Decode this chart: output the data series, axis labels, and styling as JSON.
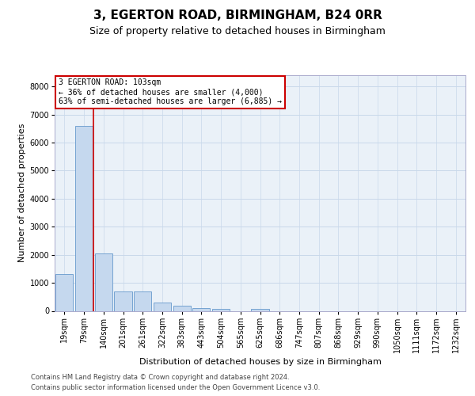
{
  "title": "3, EGERTON ROAD, BIRMINGHAM, B24 0RR",
  "subtitle": "Size of property relative to detached houses in Birmingham",
  "xlabel": "Distribution of detached houses by size in Birmingham",
  "ylabel": "Number of detached properties",
  "footnote1": "Contains HM Land Registry data © Crown copyright and database right 2024.",
  "footnote2": "Contains public sector information licensed under the Open Government Licence v3.0.",
  "annotation_line1": "3 EGERTON ROAD: 103sqm",
  "annotation_line2": "← 36% of detached houses are smaller (4,000)",
  "annotation_line3": "63% of semi-detached houses are larger (6,885) →",
  "bar_labels": [
    "19sqm",
    "79sqm",
    "140sqm",
    "201sqm",
    "261sqm",
    "322sqm",
    "383sqm",
    "443sqm",
    "504sqm",
    "565sqm",
    "625sqm",
    "686sqm",
    "747sqm",
    "807sqm",
    "868sqm",
    "929sqm",
    "990sqm",
    "1050sqm",
    "1111sqm",
    "1172sqm",
    "1232sqm"
  ],
  "bar_values": [
    1300,
    6600,
    2050,
    700,
    700,
    300,
    180,
    100,
    60,
    0,
    60,
    0,
    0,
    0,
    0,
    0,
    0,
    0,
    0,
    0,
    0
  ],
  "bar_color": "#c5d8ee",
  "bar_edgecolor": "#6699cc",
  "ylim_max": 8400,
  "yticks": [
    0,
    1000,
    2000,
    3000,
    4000,
    5000,
    6000,
    7000,
    8000
  ],
  "vline_x": 1.5,
  "vline_color": "#cc0000",
  "grid_color": "#c8d8ea",
  "bg_color": "#eaf1f8",
  "title_fontsize": 11,
  "subtitle_fontsize": 9,
  "ylabel_fontsize": 8,
  "xlabel_fontsize": 8,
  "tick_fontsize": 7,
  "footnote_fontsize": 6
}
